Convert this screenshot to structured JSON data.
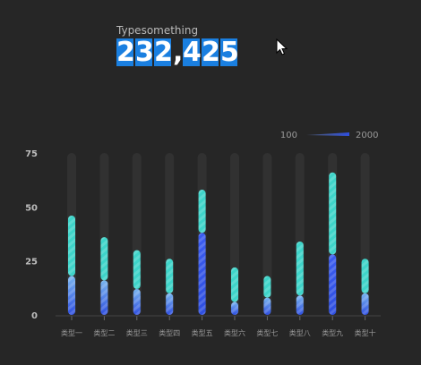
{
  "header": {
    "label": "Typesomething",
    "value": "232,425"
  },
  "colors": {
    "background": "#262626",
    "digit_bg": "#1a7fe0",
    "track": "#3a3a3a",
    "segment_top": "#3ed4c9",
    "segment_mid": "#79b5ef",
    "segment_bottom": "#2f4fe0"
  },
  "chart_data": {
    "type": "bar",
    "categories": [
      "类型一",
      "类型二",
      "类型三",
      "类型四",
      "类型五",
      "类型六",
      "类型七",
      "类型八",
      "类型九",
      "类型十"
    ],
    "series": [
      {
        "values": [
          18,
          16,
          12,
          10,
          38,
          6,
          8,
          9,
          28,
          10
        ]
      },
      {
        "values": [
          46,
          36,
          30,
          26,
          58,
          22,
          18,
          34,
          66,
          26
        ]
      }
    ],
    "ylim": [
      0,
      75
    ],
    "yticks": [
      0,
      25,
      50,
      75
    ],
    "visual_map": {
      "min_label": "100",
      "max_label": "2000"
    },
    "grid": false
  }
}
